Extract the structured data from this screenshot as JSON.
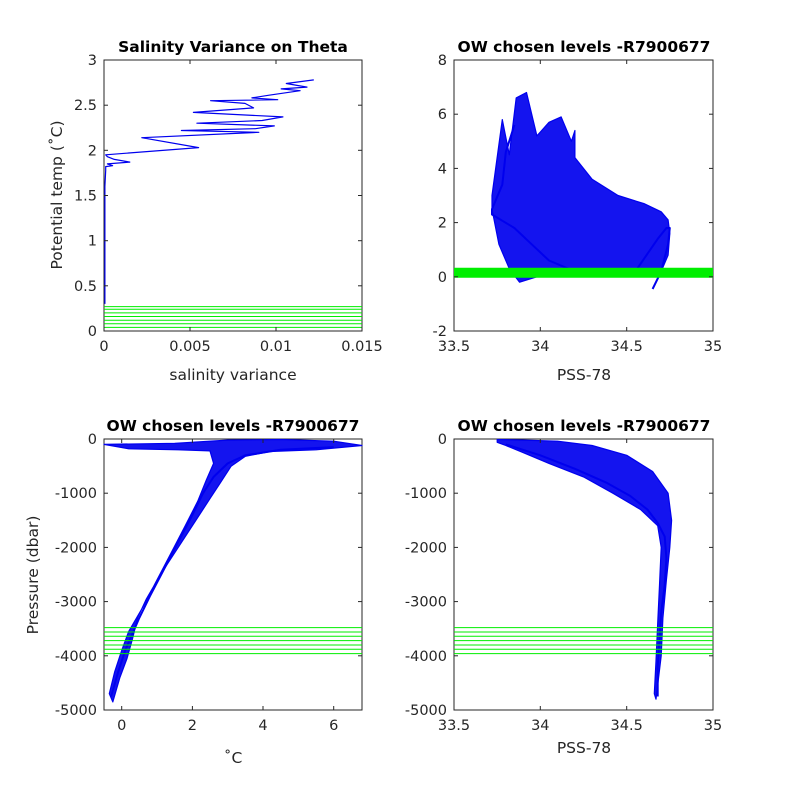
{
  "colors": {
    "profile": "#0000ee",
    "levels": "#00ee00",
    "axis": "#262626"
  },
  "chart_data": [
    {
      "id": "p1",
      "type": "line",
      "title": "Salinity Variance on Theta",
      "xlabel": "salinity variance",
      "ylabel": "Potential temp (˚C)",
      "xlim": [
        0,
        0.015
      ],
      "ylim": [
        0,
        3
      ],
      "xticks": [
        0,
        0.005,
        0.01,
        0.015
      ],
      "xtick_labels": [
        "0",
        "0.005",
        "0.01",
        "0.015"
      ],
      "yticks": [
        0,
        0.5,
        1,
        1.5,
        2,
        2.5,
        3
      ],
      "ytick_labels": [
        "0",
        "0.5",
        "1",
        "1.5",
        "2",
        "2.5",
        "3"
      ],
      "series": [
        {
          "x": [
            5e-05,
            5e-05,
            5e-05,
            5e-05,
            0.0001,
            0.0001,
            0.0005,
            0.0002,
            0.0015,
            0.0006,
            0.0002,
            0.0001,
            0.0055,
            0.0022,
            0.009,
            0.0045,
            0.0088,
            0.0099,
            0.0054,
            0.0092,
            0.0104,
            0.0052,
            0.0087,
            0.0082,
            0.0062,
            0.0101,
            0.0086,
            0.0096,
            0.0114,
            0.0103,
            0.0118,
            0.0106,
            0.0122
          ],
          "y": [
            0.3,
            0.8,
            1.2,
            1.6,
            1.78,
            1.82,
            1.83,
            1.85,
            1.87,
            1.9,
            1.93,
            1.95,
            2.03,
            2.14,
            2.2,
            2.22,
            2.24,
            2.27,
            2.3,
            2.33,
            2.37,
            2.42,
            2.47,
            2.52,
            2.55,
            2.56,
            2.58,
            2.61,
            2.66,
            2.68,
            2.7,
            2.74,
            2.78
          ]
        }
      ],
      "hlines": [
        0.04,
        0.08,
        0.12,
        0.16,
        0.2,
        0.24,
        0.27
      ]
    },
    {
      "id": "p2",
      "type": "line",
      "title": "OW chosen levels -R7900677",
      "xlabel": "PSS-78",
      "ylabel": "",
      "xlim": [
        33.5,
        35
      ],
      "ylim": [
        -2,
        8
      ],
      "xticks": [
        33.5,
        34,
        34.5,
        35
      ],
      "xtick_labels": [
        "33.5",
        "34",
        "34.5",
        "35"
      ],
      "yticks": [
        -2,
        0,
        2,
        4,
        6,
        8
      ],
      "ytick_labels": [
        "-2",
        "0",
        "2",
        "4",
        "6",
        "8"
      ],
      "series": [
        {
          "x": [
            33.85,
            33.8,
            33.78,
            33.72,
            33.72,
            33.85,
            33.95,
            34.05,
            34.2,
            34.4,
            34.55,
            34.68,
            34.73,
            34.75,
            34.74,
            34.7,
            34.65
          ],
          "y": [
            5.6,
            4.6,
            3.4,
            2.5,
            2.3,
            1.8,
            1.2,
            0.6,
            0.2,
            0.1,
            0.2,
            1.4,
            1.8,
            1.8,
            1.2,
            0.2,
            -0.45
          ]
        }
      ],
      "envelope": {
        "x": [
          33.72,
          33.78,
          33.82,
          33.86,
          33.92,
          33.98,
          34.05,
          34.12,
          34.18,
          34.2,
          34.2,
          34.3,
          34.45,
          34.6,
          34.7,
          34.74,
          34.75,
          34.74,
          34.7,
          34.66,
          34.6,
          34.5,
          34.4,
          34.3,
          34.2,
          34.1,
          33.98,
          33.88,
          33.82,
          33.76,
          33.72
        ],
        "y": [
          3.0,
          5.8,
          4.5,
          6.6,
          6.8,
          5.2,
          5.7,
          5.9,
          5.0,
          5.4,
          4.4,
          3.6,
          3.0,
          2.7,
          2.4,
          2.1,
          1.6,
          0.8,
          0.2,
          0.0,
          0.05,
          0.1,
          0.05,
          0.1,
          0.05,
          0.05,
          0.0,
          -0.2,
          0.3,
          1.2,
          2.5
        ]
      },
      "hlines": [
        0.0,
        0.05,
        0.1,
        0.15,
        0.2,
        0.25,
        0.3
      ]
    },
    {
      "id": "p3",
      "type": "line",
      "title": "OW chosen levels -R7900677",
      "xlabel": "˚C",
      "ylabel": "Pressure (dbar)",
      "xlim": [
        -0.5,
        6.8
      ],
      "ylim": [
        -5000,
        0
      ],
      "xticks": [
        0,
        2,
        4,
        6
      ],
      "xtick_labels": [
        "0",
        "2",
        "4",
        "6"
      ],
      "yticks": [
        -5000,
        -4000,
        -3000,
        -2000,
        -1000,
        0
      ],
      "ytick_labels": [
        "-5000",
        "-4000",
        "-3000",
        "-2000",
        "-1000",
        "0"
      ],
      "series": [
        {
          "x": [
            6.0,
            4.5,
            3.5,
            3.0,
            2.6,
            2.3,
            2.0,
            1.6,
            1.2,
            0.8,
            0.5,
            0.3,
            0.1,
            -0.1,
            -0.3
          ],
          "y": [
            -150,
            -200,
            -300,
            -450,
            -700,
            -1000,
            -1400,
            -1900,
            -2400,
            -2900,
            -3300,
            -3600,
            -3900,
            -4300,
            -4750
          ]
        }
      ],
      "envelope": {
        "x": [
          -0.5,
          1.5,
          3.0,
          4.5,
          6.0,
          6.8,
          5.5,
          4.2,
          3.5,
          3.1,
          2.8,
          2.5,
          2.1,
          1.6,
          1.1,
          0.7,
          0.45,
          0.3,
          0.15,
          -0.05,
          -0.25,
          -0.35,
          -0.2,
          0.0,
          0.2,
          0.6,
          1.0,
          1.4,
          1.8,
          2.15,
          2.4,
          2.6,
          2.5,
          1.6,
          0.2
        ],
        "y": [
          -100,
          -80,
          -20,
          -10,
          -40,
          -120,
          -200,
          -230,
          -320,
          -500,
          -800,
          -1100,
          -1500,
          -2000,
          -2500,
          -2950,
          -3300,
          -3700,
          -4050,
          -4400,
          -4850,
          -4700,
          -4300,
          -3900,
          -3550,
          -3100,
          -2600,
          -2100,
          -1600,
          -1150,
          -750,
          -450,
          -220,
          -200,
          -180
        ]
      },
      "hlines": [
        -3480,
        -3560,
        -3640,
        -3720,
        -3800,
        -3880,
        -3960
      ]
    },
    {
      "id": "p4",
      "type": "line",
      "title": "OW chosen levels -R7900677",
      "xlabel": "PSS-78",
      "ylabel": "",
      "xlim": [
        33.5,
        35
      ],
      "ylim": [
        -5000,
        0
      ],
      "xticks": [
        33.5,
        34,
        34.5,
        35
      ],
      "xtick_labels": [
        "33.5",
        "34",
        "34.5",
        "35"
      ],
      "yticks": [
        -5000,
        -4000,
        -3000,
        -2000,
        -1000,
        0
      ],
      "ytick_labels": [
        "-5000",
        "-4000",
        "-3000",
        "-2000",
        "-1000",
        "0"
      ],
      "series": [
        {
          "x": [
            33.8,
            34.0,
            34.2,
            34.38,
            34.52,
            34.62,
            34.68,
            34.72,
            34.73,
            34.72,
            34.7,
            34.69,
            34.68,
            34.68
          ],
          "y": [
            -100,
            -300,
            -550,
            -800,
            -1050,
            -1300,
            -1550,
            -1800,
            -2200,
            -2700,
            -3200,
            -3700,
            -4200,
            -4750
          ]
        }
      ],
      "envelope": {
        "x": [
          33.75,
          33.9,
          34.1,
          34.3,
          34.5,
          34.65,
          34.74,
          34.76,
          34.75,
          34.73,
          34.71,
          34.7,
          34.67,
          34.66,
          34.67,
          34.68,
          34.69,
          34.7,
          34.68,
          34.58,
          34.42,
          34.25,
          34.05,
          33.9,
          33.8,
          33.75
        ],
        "y": [
          -10,
          -20,
          -40,
          -120,
          -300,
          -600,
          -1000,
          -1500,
          -2000,
          -2600,
          -3300,
          -4000,
          -4800,
          -4700,
          -4100,
          -3400,
          -2700,
          -2000,
          -1600,
          -1300,
          -1000,
          -700,
          -450,
          -250,
          -120,
          -60
        ]
      },
      "hlines": [
        -3480,
        -3560,
        -3640,
        -3720,
        -3800,
        -3880,
        -3960
      ]
    }
  ]
}
